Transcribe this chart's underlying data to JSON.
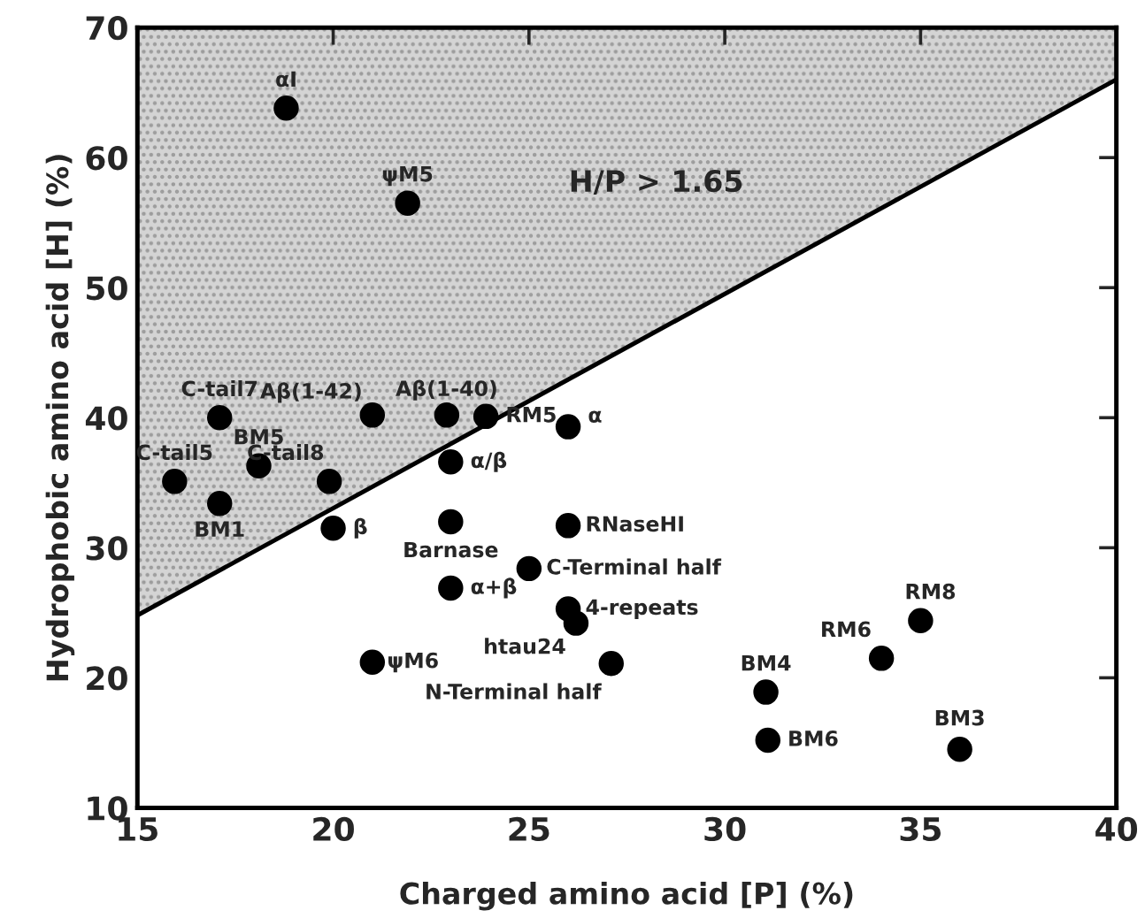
{
  "chart_data": {
    "type": "scatter",
    "xlabel": "Charged amino acid [P] (%)",
    "ylabel": "Hydrophobic amino acid [H] (%)",
    "xlim": [
      15,
      40
    ],
    "xticks": [
      15,
      20,
      25,
      30,
      35,
      40
    ],
    "ylim": [
      10,
      70
    ],
    "yticks": [
      10,
      20,
      30,
      40,
      50,
      60,
      70
    ],
    "grid": false,
    "legend": false,
    "marker": "circle",
    "series": [
      {
        "type": "line",
        "marker": "none",
        "color": "#000000",
        "x": [
          15,
          40
        ],
        "values": [
          24.8,
          66
        ],
        "lower": [
          24.8,
          66
        ],
        "upper": [
          70,
          70
        ]
      },
      {
        "color": "#000000",
        "x": [
          18.8,
          21.9,
          17.1,
          21.0,
          22.9,
          23.9,
          26.0,
          15.95,
          18.1,
          17.1,
          19.9,
          20.0,
          23.0,
          23.0,
          23.0,
          21.0,
          25.0,
          26.0,
          26.0,
          26.2,
          27.1,
          31.05,
          31.1,
          34.0,
          35.0,
          36.0
        ],
        "values": [
          63.8,
          56.5,
          40.0,
          40.2,
          40.2,
          40.1,
          39.3,
          35.1,
          36.3,
          33.4,
          35.1,
          31.5,
          36.6,
          32.0,
          26.9,
          21.2,
          28.4,
          31.7,
          25.3,
          24.2,
          21.1,
          18.9,
          15.2,
          21.5,
          24.4,
          14.5
        ]
      }
    ],
    "annotations": [
      {
        "text": "αI",
        "x": 18.8,
        "y": 63.8
      },
      {
        "text": "ψM5",
        "x": 21.9,
        "y": 56.5
      },
      {
        "text": "C-tail7",
        "x": 17.1,
        "y": 40.0
      },
      {
        "text": "Aβ(1-42)",
        "x": 21.0,
        "y": 40.2
      },
      {
        "text": "Aβ(1-40)",
        "x": 22.9,
        "y": 40.2
      },
      {
        "text": "RM5",
        "x": 23.9,
        "y": 40.1
      },
      {
        "text": "α",
        "x": 26.0,
        "y": 39.3
      },
      {
        "text": "C-tail5",
        "x": 15.95,
        "y": 35.1
      },
      {
        "text": "BM5",
        "x": 18.1,
        "y": 36.3
      },
      {
        "text": "BM1",
        "x": 17.1,
        "y": 33.4
      },
      {
        "text": "C-tail8",
        "x": 19.9,
        "y": 35.1
      },
      {
        "text": "β",
        "x": 20.0,
        "y": 31.5
      },
      {
        "text": "α/β",
        "x": 23.0,
        "y": 36.6
      },
      {
        "text": "Barnase",
        "x": 23.0,
        "y": 32.0
      },
      {
        "text": "α+β",
        "x": 23.0,
        "y": 26.9
      },
      {
        "text": "ψM6",
        "x": 21.0,
        "y": 21.2
      },
      {
        "text": "C-Terminal half",
        "x": 25.0,
        "y": 28.4
      },
      {
        "text": "RNaseHI",
        "x": 26.0,
        "y": 31.7
      },
      {
        "text": "4-repeats",
        "x": 26.0,
        "y": 25.3
      },
      {
        "text": "htau24",
        "x": 26.2,
        "y": 24.2
      },
      {
        "text": "N-Terminal half",
        "x": 27.1,
        "y": 21.1
      },
      {
        "text": "BM4",
        "x": 31.05,
        "y": 18.9
      },
      {
        "text": "BM6",
        "x": 31.1,
        "y": 15.2
      },
      {
        "text": "RM6",
        "x": 34.0,
        "y": 21.5
      },
      {
        "text": "RM8",
        "x": 35.0,
        "y": 24.4
      },
      {
        "text": "BM3",
        "x": 36.0,
        "y": 14.5
      },
      "H/P > 1.65"
    ]
  }
}
